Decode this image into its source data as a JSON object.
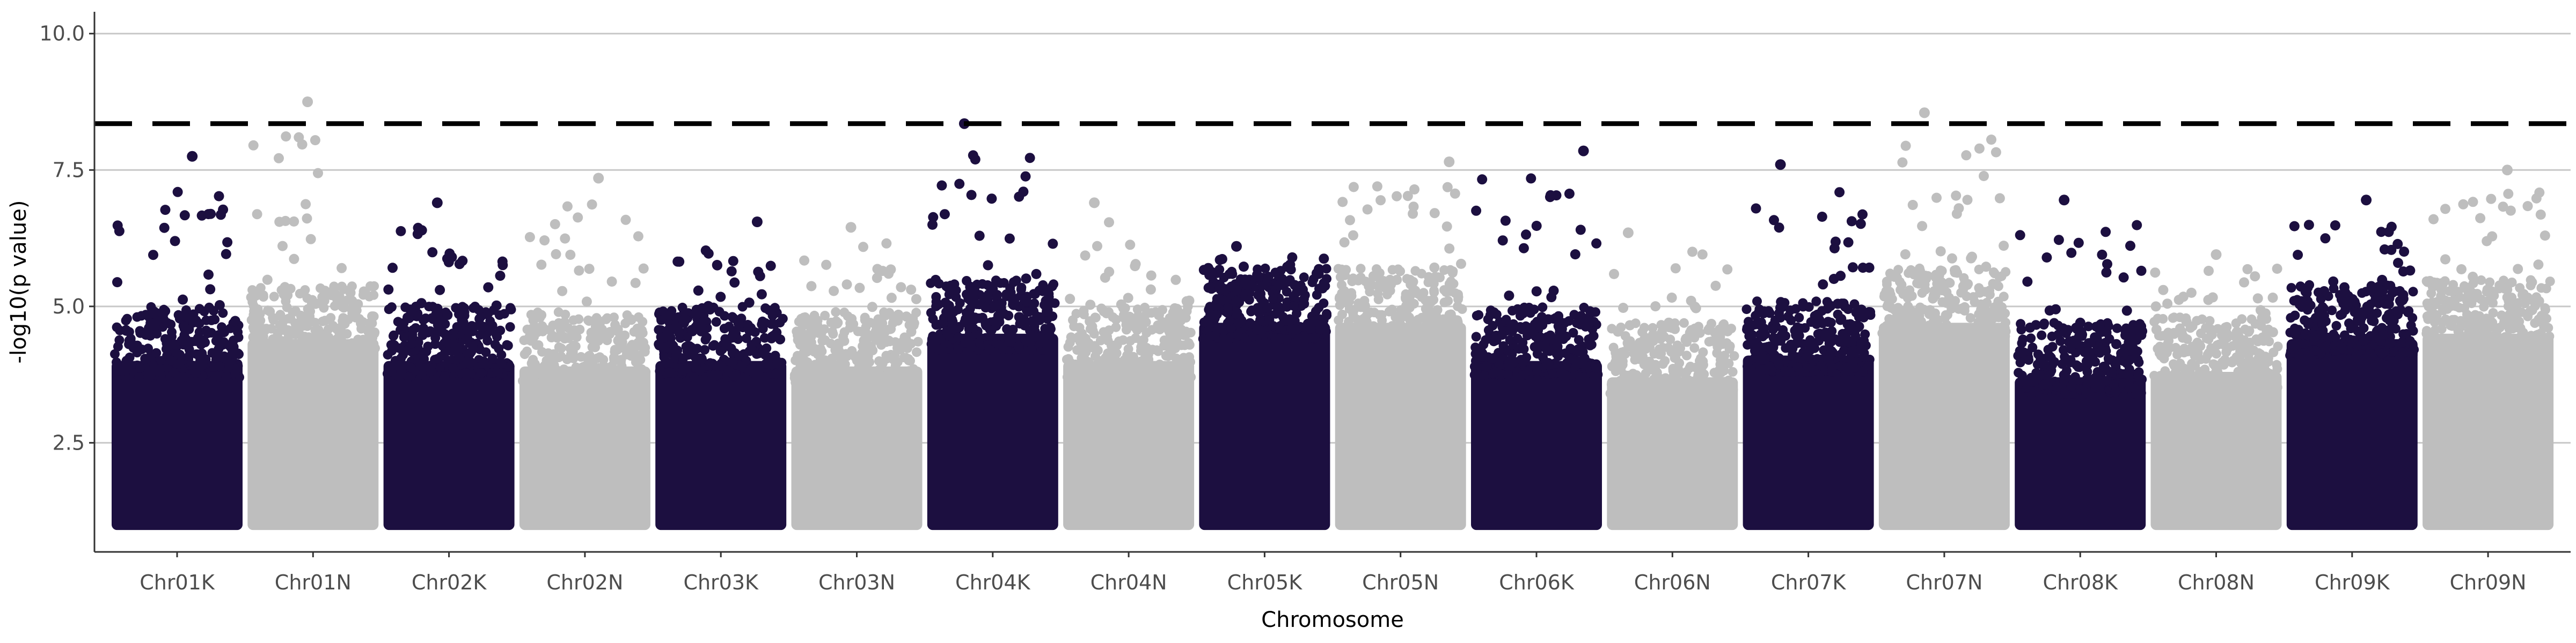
{
  "chart_data": {
    "type": "scatter",
    "subtype": "manhattan",
    "title": "",
    "xlabel": "Chromosome",
    "ylabel": "-log10(p value)",
    "ylim": [
      0.5,
      10.4
    ],
    "yticks": [
      2.5,
      5.0,
      7.5,
      10.0
    ],
    "ytick_labels": [
      "2.5",
      "5.0",
      "7.5",
      "10.0"
    ],
    "grid": "horizontal major",
    "legend": "none",
    "threshold": 8.35,
    "threshold_style": "dashed black",
    "colors": {
      "odd": "#1c0f40",
      "even": "#bebebe"
    },
    "chromosomes": [
      {
        "label": "Chr01K",
        "color": "#1c0f40",
        "peak": 7.75,
        "band_top": 4.6
      },
      {
        "label": "Chr01N",
        "color": "#bebebe",
        "peak": 8.75,
        "band_top": 5.0
      },
      {
        "label": "Chr02K",
        "color": "#1c0f40",
        "peak": 6.9,
        "band_top": 4.6
      },
      {
        "label": "Chr02N",
        "color": "#bebebe",
        "peak": 7.35,
        "band_top": 4.5
      },
      {
        "label": "Chr03K",
        "color": "#1c0f40",
        "peak": 6.55,
        "band_top": 4.6
      },
      {
        "label": "Chr03N",
        "color": "#bebebe",
        "peak": 6.45,
        "band_top": 4.5
      },
      {
        "label": "Chr04K",
        "color": "#1c0f40",
        "peak": 8.35,
        "band_top": 5.1
      },
      {
        "label": "Chr04N",
        "color": "#bebebe",
        "peak": 6.9,
        "band_top": 4.6
      },
      {
        "label": "Chr05K",
        "color": "#1c0f40",
        "peak": 6.1,
        "band_top": 5.3
      },
      {
        "label": "Chr05N",
        "color": "#bebebe",
        "peak": 7.65,
        "band_top": 5.3
      },
      {
        "label": "Chr06K",
        "color": "#1c0f40",
        "peak": 7.85,
        "band_top": 4.6
      },
      {
        "label": "Chr06N",
        "color": "#bebebe",
        "peak": 6.35,
        "band_top": 4.3
      },
      {
        "label": "Chr07K",
        "color": "#1c0f40",
        "peak": 7.6,
        "band_top": 4.7
      },
      {
        "label": "Chr07N",
        "color": "#bebebe",
        "peak": 8.55,
        "band_top": 5.3
      },
      {
        "label": "Chr08K",
        "color": "#1c0f40",
        "peak": 6.95,
        "band_top": 4.3
      },
      {
        "label": "Chr08N",
        "color": "#bebebe",
        "peak": 5.95,
        "band_top": 4.4
      },
      {
        "label": "Chr09K",
        "color": "#1c0f40",
        "peak": 6.95,
        "band_top": 5.0
      },
      {
        "label": "Chr09N",
        "color": "#bebebe",
        "peak": 7.5,
        "band_top": 5.1
      }
    ],
    "min_value": 1.0
  }
}
